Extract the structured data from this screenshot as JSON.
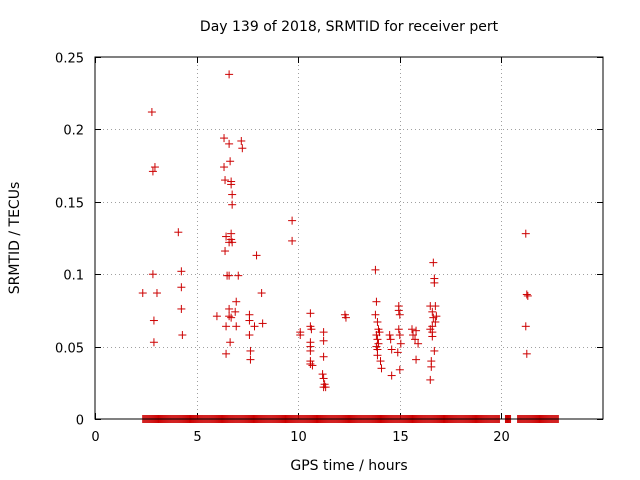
{
  "chart_data": {
    "type": "scatter",
    "title": "Day 139 of 2018, SRMTID for receiver pert",
    "xlabel": "GPS time / hours",
    "ylabel": "SRMTID / TECUs",
    "xlim": [
      0,
      25
    ],
    "ylim": [
      0,
      0.25
    ],
    "xticks": [
      0,
      5,
      10,
      15,
      20
    ],
    "xtick_labels": [
      "0",
      "5",
      "10",
      "15",
      "20"
    ],
    "yticks": [
      0,
      0.05,
      0.1,
      0.15,
      0.2,
      0.25
    ],
    "ytick_labels": [
      "0",
      "0.05",
      "0.1",
      "0.15",
      "0.2",
      "0.25"
    ],
    "grid": true,
    "marker": "+",
    "color": "#cc0000",
    "zero_band": {
      "from": 2.35,
      "to": 22.8,
      "value": 0,
      "gaps": [
        [
          19.95,
          20.2
        ],
        [
          20.5,
          20.8
        ]
      ]
    },
    "series": [
      {
        "name": "pert",
        "points": [
          [
            2.35,
            0.087
          ],
          [
            2.8,
            0.212
          ],
          [
            2.85,
            0.171
          ],
          [
            2.95,
            0.174
          ],
          [
            2.85,
            0.1
          ],
          [
            2.9,
            0.068
          ],
          [
            3.05,
            0.087
          ],
          [
            2.9,
            0.053
          ],
          [
            4.1,
            0.129
          ],
          [
            4.25,
            0.102
          ],
          [
            4.25,
            0.091
          ],
          [
            4.25,
            0.076
          ],
          [
            4.3,
            0.058
          ],
          [
            6.0,
            0.071
          ],
          [
            6.35,
            0.194
          ],
          [
            6.35,
            0.174
          ],
          [
            6.4,
            0.165
          ],
          [
            6.4,
            0.116
          ],
          [
            6.45,
            0.126
          ],
          [
            6.5,
            0.099
          ],
          [
            6.45,
            0.064
          ],
          [
            6.45,
            0.045
          ],
          [
            6.6,
            0.238
          ],
          [
            6.6,
            0.19
          ],
          [
            6.65,
            0.178
          ],
          [
            6.7,
            0.164
          ],
          [
            6.7,
            0.162
          ],
          [
            6.75,
            0.155
          ],
          [
            6.75,
            0.148
          ],
          [
            6.7,
            0.128
          ],
          [
            6.7,
            0.124
          ],
          [
            6.75,
            0.122
          ],
          [
            6.6,
            0.122
          ],
          [
            6.6,
            0.099
          ],
          [
            6.6,
            0.076
          ],
          [
            6.6,
            0.071
          ],
          [
            6.7,
            0.07
          ],
          [
            6.65,
            0.053
          ],
          [
            6.9,
            0.074
          ],
          [
            6.95,
            0.081
          ],
          [
            6.95,
            0.064
          ],
          [
            7.05,
            0.099
          ],
          [
            7.2,
            0.192
          ],
          [
            7.25,
            0.187
          ],
          [
            7.6,
            0.072
          ],
          [
            7.6,
            0.068
          ],
          [
            7.6,
            0.058
          ],
          [
            7.65,
            0.047
          ],
          [
            7.65,
            0.041
          ],
          [
            7.85,
            0.064
          ],
          [
            7.95,
            0.113
          ],
          [
            8.2,
            0.087
          ],
          [
            8.25,
            0.066
          ],
          [
            9.7,
            0.137
          ],
          [
            9.7,
            0.123
          ],
          [
            10.1,
            0.06
          ],
          [
            10.1,
            0.058
          ],
          [
            10.6,
            0.073
          ],
          [
            10.6,
            0.064
          ],
          [
            10.65,
            0.062
          ],
          [
            10.6,
            0.053
          ],
          [
            10.6,
            0.05
          ],
          [
            10.6,
            0.047
          ],
          [
            10.6,
            0.04
          ],
          [
            10.7,
            0.037
          ],
          [
            10.6,
            0.038
          ],
          [
            11.25,
            0.06
          ],
          [
            11.25,
            0.054
          ],
          [
            11.25,
            0.043
          ],
          [
            11.2,
            0.031
          ],
          [
            11.25,
            0.028
          ],
          [
            11.3,
            0.024
          ],
          [
            11.25,
            0.022
          ],
          [
            11.35,
            0.022
          ],
          [
            12.3,
            0.072
          ],
          [
            12.35,
            0.07
          ],
          [
            13.8,
            0.103
          ],
          [
            13.85,
            0.081
          ],
          [
            13.8,
            0.072
          ],
          [
            13.9,
            0.067
          ],
          [
            13.95,
            0.062
          ],
          [
            14.0,
            0.06
          ],
          [
            13.85,
            0.058
          ],
          [
            13.9,
            0.055
          ],
          [
            13.95,
            0.052
          ],
          [
            13.85,
            0.05
          ],
          [
            13.9,
            0.048
          ],
          [
            13.9,
            0.044
          ],
          [
            14.05,
            0.04
          ],
          [
            14.1,
            0.035
          ],
          [
            14.5,
            0.058
          ],
          [
            14.55,
            0.055
          ],
          [
            14.6,
            0.048
          ],
          [
            14.6,
            0.03
          ],
          [
            14.95,
            0.078
          ],
          [
            14.95,
            0.075
          ],
          [
            15.0,
            0.072
          ],
          [
            14.95,
            0.062
          ],
          [
            15.0,
            0.058
          ],
          [
            15.05,
            0.052
          ],
          [
            14.9,
            0.046
          ],
          [
            15.0,
            0.034
          ],
          [
            15.6,
            0.062
          ],
          [
            15.65,
            0.058
          ],
          [
            15.8,
            0.061
          ],
          [
            15.75,
            0.055
          ],
          [
            15.9,
            0.052
          ],
          [
            15.8,
            0.041
          ],
          [
            16.5,
            0.078
          ],
          [
            16.6,
            0.074
          ],
          [
            16.65,
            0.07
          ],
          [
            16.6,
            0.064
          ],
          [
            16.5,
            0.062
          ],
          [
            16.6,
            0.06
          ],
          [
            16.6,
            0.057
          ],
          [
            16.7,
            0.047
          ],
          [
            16.55,
            0.04
          ],
          [
            16.55,
            0.036
          ],
          [
            16.5,
            0.027
          ],
          [
            16.65,
            0.108
          ],
          [
            16.7,
            0.097
          ],
          [
            16.7,
            0.094
          ],
          [
            16.75,
            0.078
          ],
          [
            16.8,
            0.071
          ],
          [
            16.75,
            0.067
          ],
          [
            21.2,
            0.128
          ],
          [
            21.25,
            0.086
          ],
          [
            21.3,
            0.085
          ],
          [
            21.2,
            0.064
          ],
          [
            21.25,
            0.045
          ]
        ]
      }
    ]
  }
}
